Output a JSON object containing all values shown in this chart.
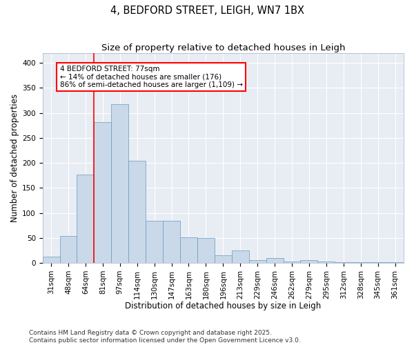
{
  "title": "4, BEDFORD STREET, LEIGH, WN7 1BX",
  "subtitle": "Size of property relative to detached houses in Leigh",
  "xlabel": "Distribution of detached houses by size in Leigh",
  "ylabel": "Number of detached properties",
  "bar_color": "#c9d9ea",
  "bar_edge_color": "#6699bb",
  "background_color": "#e8edf4",
  "grid_color": "#ffffff",
  "categories": [
    "31sqm",
    "48sqm",
    "64sqm",
    "81sqm",
    "97sqm",
    "114sqm",
    "130sqm",
    "147sqm",
    "163sqm",
    "180sqm",
    "196sqm",
    "213sqm",
    "229sqm",
    "246sqm",
    "262sqm",
    "279sqm",
    "295sqm",
    "312sqm",
    "328sqm",
    "345sqm",
    "361sqm"
  ],
  "values": [
    12,
    54,
    176,
    282,
    318,
    204,
    84,
    84,
    51,
    50,
    15,
    25,
    5,
    9,
    3,
    5,
    3,
    2,
    1,
    1,
    1
  ],
  "ylim": [
    0,
    420
  ],
  "yticks": [
    0,
    50,
    100,
    150,
    200,
    250,
    300,
    350,
    400
  ],
  "property_line_x": 3.0,
  "annotation_label": "4 BEDFORD STREET: 77sqm",
  "annotation_line1": "← 14% of detached houses are smaller (176)",
  "annotation_line2": "86% of semi-detached houses are larger (1,109) →",
  "footer_line1": "Contains HM Land Registry data © Crown copyright and database right 2025.",
  "footer_line2": "Contains public sector information licensed under the Open Government Licence v3.0.",
  "title_fontsize": 10.5,
  "subtitle_fontsize": 9.5,
  "axis_label_fontsize": 8.5,
  "tick_fontsize": 7.5,
  "annotation_fontsize": 7.5,
  "footer_fontsize": 6.5
}
